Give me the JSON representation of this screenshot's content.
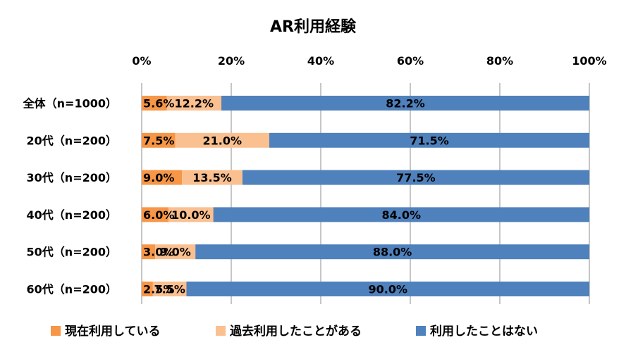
{
  "chart_data": {
    "type": "bar",
    "orientation": "horizontal",
    "stacked": true,
    "title": "AR利用経験",
    "categories": [
      "全体（n=1000）",
      "20代（n=200）",
      "30代（n=200）",
      "40代（n=200）",
      "50代（n=200）",
      "60代（n=200）"
    ],
    "series": [
      {
        "name": "現在利用している",
        "color": "#F79646",
        "values": [
          5.6,
          7.5,
          9.0,
          6.0,
          3.0,
          2.5
        ],
        "labels": [
          "5.6%",
          "7.5%",
          "9.0%",
          "6.0%",
          "3.0%",
          "2.5%"
        ]
      },
      {
        "name": "過去利用したことがある",
        "color": "#FAC090",
        "values": [
          12.2,
          21.0,
          13.5,
          10.0,
          9.0,
          7.5
        ],
        "labels": [
          "12.2%",
          "21.0%",
          "13.5%",
          "10.0%",
          "9.0%",
          "7.5%"
        ]
      },
      {
        "name": "利用したことはない",
        "color": "#4F81BD",
        "values": [
          82.2,
          71.5,
          77.5,
          84.0,
          88.0,
          90.0
        ],
        "labels": [
          "82.2%",
          "71.5%",
          "77.5%",
          "84.0%",
          "88.0%",
          "90.0%"
        ]
      }
    ],
    "xticks": [
      "0%",
      "20%",
      "40%",
      "60%",
      "80%",
      "100%"
    ],
    "xlim": [
      0,
      100
    ],
    "axis_position": "top",
    "grid": true,
    "legend_position": "bottom"
  }
}
